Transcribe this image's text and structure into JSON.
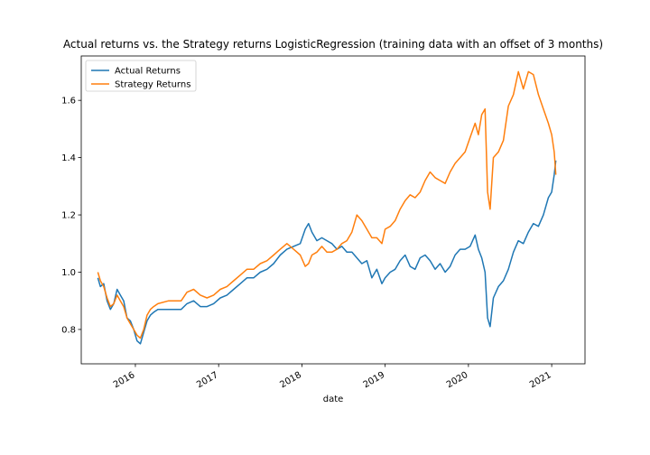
{
  "chart_data": {
    "type": "line",
    "title": "Actual returns vs. the Strategy returns LogisticRegression (training data with an offset of 3 months)",
    "xlabel": "date",
    "ylabel": "",
    "xlim": [
      2015.35,
      2021.4
    ],
    "ylim": [
      0.68,
      1.755
    ],
    "x_ticks": [
      2016,
      2017,
      2018,
      2019,
      2020,
      2021
    ],
    "x_tick_labels": [
      "2016",
      "2017",
      "2018",
      "2019",
      "2020",
      "2021"
    ],
    "y_ticks": [
      0.8,
      1.0,
      1.2,
      1.4,
      1.6
    ],
    "y_tick_labels": [
      "0.8",
      "1.0",
      "1.2",
      "1.4",
      "1.6"
    ],
    "grid": false,
    "legend_position": "top-left",
    "series": [
      {
        "name": "Actual Returns",
        "color": "#1f77b4",
        "x": [
          2015.55,
          2015.58,
          2015.62,
          2015.66,
          2015.7,
          2015.74,
          2015.78,
          2015.82,
          2015.86,
          2015.9,
          2015.94,
          2015.98,
          2016.02,
          2016.06,
          2016.1,
          2016.14,
          2016.18,
          2016.22,
          2016.27,
          2016.4,
          2016.55,
          2016.62,
          2016.7,
          2016.78,
          2016.86,
          2016.94,
          2017.02,
          2017.1,
          2017.18,
          2017.26,
          2017.34,
          2017.42,
          2017.5,
          2017.58,
          2017.66,
          2017.74,
          2017.82,
          2017.9,
          2017.98,
          2018.04,
          2018.08,
          2018.12,
          2018.18,
          2018.24,
          2018.3,
          2018.36,
          2018.42,
          2018.48,
          2018.54,
          2018.6,
          2018.66,
          2018.72,
          2018.78,
          2018.84,
          2018.9,
          2018.96,
          2019.0,
          2019.06,
          2019.12,
          2019.18,
          2019.24,
          2019.3,
          2019.36,
          2019.42,
          2019.48,
          2019.54,
          2019.6,
          2019.66,
          2019.72,
          2019.78,
          2019.84,
          2019.9,
          2019.96,
          2020.02,
          2020.08,
          2020.12,
          2020.16,
          2020.2,
          2020.23,
          2020.26,
          2020.3,
          2020.36,
          2020.42,
          2020.48,
          2020.54,
          2020.6,
          2020.66,
          2020.72,
          2020.78,
          2020.84,
          2020.9,
          2020.96,
          2021.0,
          2021.03,
          2021.05
        ],
        "y": [
          0.98,
          0.95,
          0.96,
          0.9,
          0.87,
          0.89,
          0.94,
          0.92,
          0.9,
          0.84,
          0.83,
          0.8,
          0.76,
          0.75,
          0.79,
          0.83,
          0.85,
          0.86,
          0.87,
          0.87,
          0.87,
          0.89,
          0.9,
          0.88,
          0.88,
          0.89,
          0.91,
          0.92,
          0.94,
          0.96,
          0.98,
          0.98,
          1.0,
          1.01,
          1.03,
          1.06,
          1.08,
          1.09,
          1.1,
          1.15,
          1.17,
          1.14,
          1.11,
          1.12,
          1.11,
          1.1,
          1.08,
          1.09,
          1.07,
          1.07,
          1.05,
          1.03,
          1.04,
          0.98,
          1.01,
          0.96,
          0.98,
          1.0,
          1.01,
          1.04,
          1.06,
          1.02,
          1.01,
          1.05,
          1.06,
          1.04,
          1.01,
          1.03,
          1.0,
          1.02,
          1.06,
          1.08,
          1.08,
          1.09,
          1.13,
          1.08,
          1.05,
          1.0,
          0.84,
          0.81,
          0.91,
          0.95,
          0.97,
          1.01,
          1.07,
          1.11,
          1.1,
          1.14,
          1.17,
          1.16,
          1.2,
          1.26,
          1.28,
          1.34,
          1.39
        ]
      },
      {
        "name": "Strategy Returns",
        "color": "#ff7f0e",
        "x": [
          2015.55,
          2015.58,
          2015.62,
          2015.66,
          2015.7,
          2015.74,
          2015.78,
          2015.82,
          2015.86,
          2015.9,
          2015.94,
          2015.98,
          2016.02,
          2016.06,
          2016.1,
          2016.14,
          2016.18,
          2016.22,
          2016.27,
          2016.4,
          2016.55,
          2016.62,
          2016.7,
          2016.78,
          2016.86,
          2016.94,
          2017.02,
          2017.1,
          2017.18,
          2017.26,
          2017.34,
          2017.42,
          2017.5,
          2017.58,
          2017.66,
          2017.74,
          2017.82,
          2017.9,
          2017.98,
          2018.04,
          2018.08,
          2018.12,
          2018.18,
          2018.24,
          2018.3,
          2018.36,
          2018.42,
          2018.48,
          2018.54,
          2018.6,
          2018.66,
          2018.72,
          2018.78,
          2018.84,
          2018.9,
          2018.96,
          2019.0,
          2019.06,
          2019.12,
          2019.18,
          2019.24,
          2019.3,
          2019.36,
          2019.42,
          2019.48,
          2019.54,
          2019.6,
          2019.66,
          2019.72,
          2019.78,
          2019.84,
          2019.9,
          2019.96,
          2020.02,
          2020.08,
          2020.12,
          2020.16,
          2020.2,
          2020.23,
          2020.26,
          2020.3,
          2020.36,
          2020.42,
          2020.48,
          2020.54,
          2020.6,
          2020.66,
          2020.72,
          2020.78,
          2020.84,
          2020.9,
          2020.96,
          2021.0,
          2021.03,
          2021.05
        ],
        "y": [
          1.0,
          0.97,
          0.95,
          0.91,
          0.88,
          0.89,
          0.92,
          0.9,
          0.88,
          0.84,
          0.82,
          0.8,
          0.78,
          0.77,
          0.8,
          0.85,
          0.87,
          0.88,
          0.89,
          0.9,
          0.9,
          0.93,
          0.94,
          0.92,
          0.91,
          0.92,
          0.94,
          0.95,
          0.97,
          0.99,
          1.01,
          1.01,
          1.03,
          1.04,
          1.06,
          1.08,
          1.1,
          1.08,
          1.06,
          1.02,
          1.03,
          1.06,
          1.07,
          1.09,
          1.07,
          1.07,
          1.08,
          1.1,
          1.11,
          1.14,
          1.2,
          1.18,
          1.15,
          1.12,
          1.12,
          1.1,
          1.15,
          1.16,
          1.18,
          1.22,
          1.25,
          1.27,
          1.26,
          1.28,
          1.32,
          1.35,
          1.33,
          1.32,
          1.31,
          1.35,
          1.38,
          1.4,
          1.42,
          1.47,
          1.52,
          1.48,
          1.55,
          1.57,
          1.28,
          1.22,
          1.4,
          1.42,
          1.46,
          1.58,
          1.62,
          1.7,
          1.64,
          1.7,
          1.69,
          1.62,
          1.57,
          1.52,
          1.48,
          1.42,
          1.34
        ]
      }
    ]
  }
}
